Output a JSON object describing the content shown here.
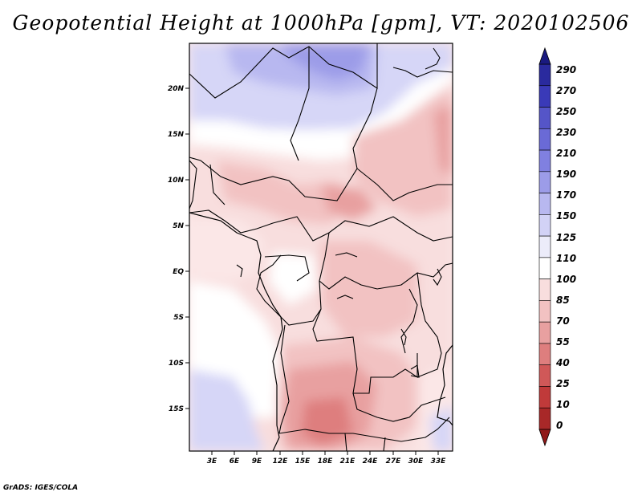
{
  "title": "Geopotential Height at 1000hPa [gpm], VT: 2020102506",
  "credit": "GrADS: IGES/COLA",
  "map": {
    "lon_labels": [
      "3E",
      "6E",
      "9E",
      "12E",
      "15E",
      "18E",
      "21E",
      "24E",
      "27E",
      "30E",
      "33E"
    ],
    "lat_labels": [
      "20N",
      "15N",
      "10N",
      "5N",
      "EQ",
      "5S",
      "10S",
      "15S"
    ]
  },
  "colorbar": {
    "labels": [
      "290",
      "270",
      "250",
      "230",
      "210",
      "190",
      "170",
      "150",
      "125",
      "110",
      "100",
      "85",
      "70",
      "55",
      "40",
      "25",
      "10",
      "0"
    ],
    "colors": [
      "#1a1a80",
      "#2a2a9e",
      "#3a3ab8",
      "#5555c8",
      "#6a6ad6",
      "#8080e0",
      "#9c9ce8",
      "#b8b8f0",
      "#d2d2f6",
      "#ececfa",
      "#ffffff",
      "#f8dede",
      "#f2c2c2",
      "#e8a0a0",
      "#de7e7e",
      "#d05858",
      "#c03a3a",
      "#a82828",
      "#901818"
    ]
  }
}
